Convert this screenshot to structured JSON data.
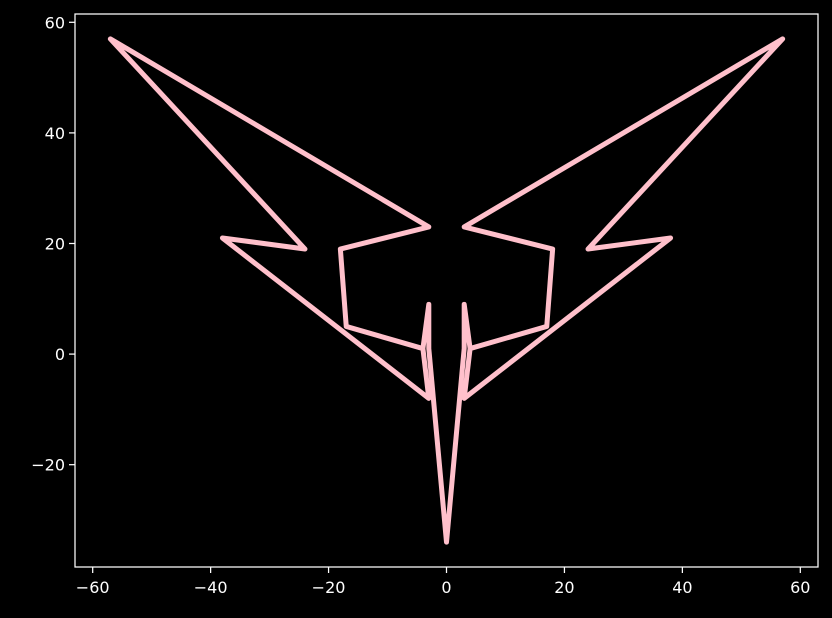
{
  "chart_data": {
    "type": "line",
    "title": "",
    "xlabel": "",
    "ylabel": "",
    "xlim": [
      -63,
      63
    ],
    "ylim": [
      -38.5,
      61.5
    ],
    "grid": false,
    "background_color": "#000000",
    "axis_color": "#ffffff",
    "x_ticks": [
      -60,
      -40,
      -20,
      0,
      20,
      40,
      60
    ],
    "y_ticks": [
      -20,
      0,
      20,
      40,
      60
    ],
    "x_tick_labels": [
      "−60",
      "−40",
      "−20",
      "0",
      "20",
      "40",
      "60"
    ],
    "y_tick_labels": [
      "−20",
      "0",
      "20",
      "40",
      "60"
    ],
    "series": [
      {
        "color": "#ffc0cb",
        "points": [
          [
            0,
            -34
          ],
          [
            -3,
            1
          ],
          [
            -3,
            9
          ],
          [
            -4,
            1
          ],
          [
            -17,
            5
          ],
          [
            -18,
            19
          ],
          [
            -3,
            23
          ],
          [
            -57,
            57
          ],
          [
            -24,
            19
          ],
          [
            -38,
            21
          ],
          [
            -3,
            -8
          ],
          [
            -4,
            1
          ],
          [
            -3,
            9
          ],
          [
            -3,
            1
          ],
          [
            0,
            -34
          ],
          [
            3,
            1
          ],
          [
            3,
            9
          ],
          [
            4,
            1
          ],
          [
            17,
            5
          ],
          [
            18,
            19
          ],
          [
            3,
            23
          ],
          [
            57,
            57
          ],
          [
            24,
            19
          ],
          [
            38,
            21
          ],
          [
            3,
            -8
          ],
          [
            4,
            1
          ],
          [
            3,
            9
          ],
          [
            3,
            1
          ],
          [
            0,
            -34
          ]
        ]
      }
    ]
  }
}
